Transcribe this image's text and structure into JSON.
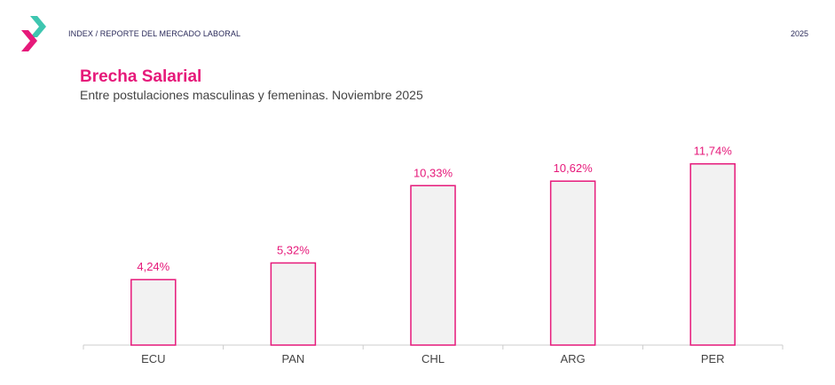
{
  "header": {
    "breadcrumb": "INDEX / REPORTE DEL MERCADO LABORAL",
    "year": "2025"
  },
  "colors": {
    "accent": "#e6197a",
    "logo_teal": "#3ec6b0",
    "bar_fill": "#f2f2f2",
    "axis": "#cccccc"
  },
  "chart_data": {
    "type": "bar",
    "title": "Brecha Salarial",
    "subtitle": "Entre postulaciones masculinas y femeninas. Noviembre 2025",
    "categories": [
      "ECU",
      "PAN",
      "CHL",
      "ARG",
      "PER"
    ],
    "values": [
      4.24,
      5.32,
      10.33,
      10.62,
      11.74
    ],
    "labels": [
      "4,24%",
      "5,32%",
      "10,33%",
      "10,62%",
      "11,74%"
    ],
    "xlabel": "",
    "ylabel": "",
    "ylim": [
      0,
      12
    ],
    "grid": false,
    "legend": "none"
  }
}
